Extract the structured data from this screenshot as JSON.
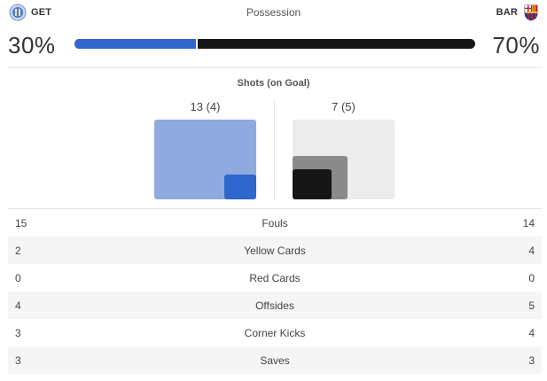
{
  "teams": {
    "home": {
      "abbr": "GET",
      "crest_icon": "getafe-crest-icon",
      "color": "#2f67cc"
    },
    "away": {
      "abbr": "BAR",
      "crest_icon": "barcelona-crest-icon",
      "color": "#161616"
    }
  },
  "possession": {
    "title": "Possession",
    "home_pct": "30%",
    "away_pct": "70%",
    "home_fraction": 0.3
  },
  "shots": {
    "title": "Shots (on Goal)",
    "home_label": "13 (4)",
    "away_label": "7 (5)",
    "home_total": 13,
    "home_on_goal": 4,
    "away_total": 7,
    "away_on_goal": 5,
    "colors": {
      "home_total": "#8eaadf",
      "home_on_goal": "#2f67cc",
      "away_total": "#ececec",
      "away_on_goal_outer": "#8a8a8a",
      "away_on_goal": "#161616"
    }
  },
  "stats": [
    {
      "home": "15",
      "label": "Fouls",
      "away": "14"
    },
    {
      "home": "2",
      "label": "Yellow Cards",
      "away": "4"
    },
    {
      "home": "0",
      "label": "Red Cards",
      "away": "0"
    },
    {
      "home": "4",
      "label": "Offsides",
      "away": "5"
    },
    {
      "home": "3",
      "label": "Corner Kicks",
      "away": "4"
    },
    {
      "home": "3",
      "label": "Saves",
      "away": "3"
    }
  ]
}
